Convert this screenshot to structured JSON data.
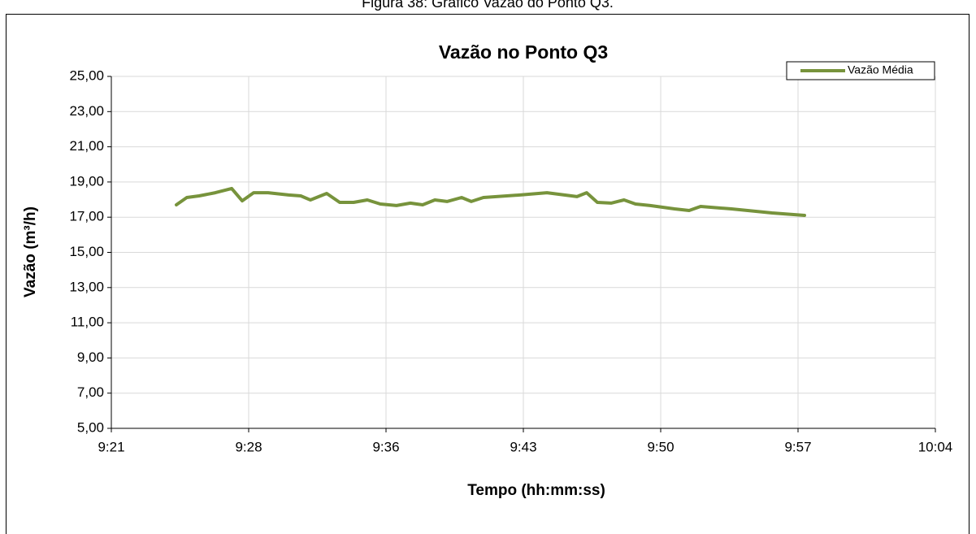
{
  "caption": "Figura 38: Gráfico Vazão do Ponto Q3.",
  "chart_data": {
    "type": "line",
    "title": "Vazão no Ponto Q3",
    "x_label": "Tempo (hh:mm:ss)",
    "y_label": "Vazão (m³/h)",
    "x": [
      565.01,
      565.56,
      566.2,
      567.05,
      567.91,
      568.46,
      569.06,
      569.82,
      570.89,
      571.53,
      572.04,
      572.89,
      573.57,
      574.3,
      575.02,
      575.7,
      576.55,
      577.28,
      577.92,
      578.56,
      579.2,
      579.96,
      580.47,
      581.11,
      583.03,
      584.44,
      586.01,
      586.52,
      587.08,
      587.8,
      588.48,
      589.08,
      589.85,
      591.13,
      591.89,
      592.49,
      594.11,
      596.24,
      597.94
    ],
    "series": [
      {
        "name": "Vazão Média",
        "color": "#77933c",
        "values": [
          17.7,
          18.12,
          18.21,
          18.39,
          18.63,
          17.93,
          18.39,
          18.39,
          18.26,
          18.21,
          17.98,
          18.35,
          17.84,
          17.84,
          17.98,
          17.75,
          17.66,
          17.8,
          17.7,
          17.98,
          17.89,
          18.12,
          17.89,
          18.12,
          18.26,
          18.39,
          18.17,
          18.39,
          17.84,
          17.8,
          17.98,
          17.75,
          17.66,
          17.47,
          17.38,
          17.61,
          17.47,
          17.24,
          17.1
        ]
      }
    ],
    "xlim": [
      561.6,
      604.8
    ],
    "xticks": [
      {
        "value": 561.6,
        "label": "9:21"
      },
      {
        "value": 568.8,
        "label": "9:28"
      },
      {
        "value": 576,
        "label": "9:36"
      },
      {
        "value": 583.2,
        "label": "9:43"
      },
      {
        "value": 590.4,
        "label": "9:50"
      },
      {
        "value": 597.6,
        "label": "9:57"
      },
      {
        "value": 604.8,
        "label": "10:04"
      }
    ],
    "ylim": [
      5,
      25
    ],
    "yticks": [
      {
        "value": 5,
        "label": "5,00"
      },
      {
        "value": 7,
        "label": "7,00"
      },
      {
        "value": 9,
        "label": "9,00"
      },
      {
        "value": 11,
        "label": "11,00"
      },
      {
        "value": 13,
        "label": "13,00"
      },
      {
        "value": 15,
        "label": "15,00"
      },
      {
        "value": 17,
        "label": "17,00"
      },
      {
        "value": 19,
        "label": "19,00"
      },
      {
        "value": 21,
        "label": "21,00"
      },
      {
        "value": 23,
        "label": "23,00"
      },
      {
        "value": 25,
        "label": "25,00"
      }
    ],
    "grid": true,
    "legend": "top-right"
  }
}
